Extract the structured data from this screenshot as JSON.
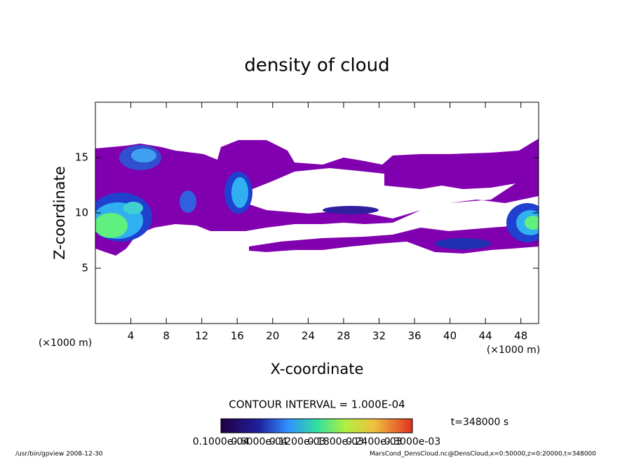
{
  "chart_data": {
    "type": "contour",
    "title": "density of cloud",
    "x_label": "X-coordinate",
    "y_label": "Z-coordinate",
    "x_unit": "(×1000 m)",
    "y_unit": "(×1000 m)",
    "xlim": [
      0,
      50
    ],
    "xticks": [
      4,
      8,
      12,
      16,
      20,
      24,
      28,
      32,
      36,
      40,
      44,
      48
    ],
    "ylim": [
      0,
      20
    ],
    "yticks": [
      5,
      10,
      15
    ],
    "contour_interval": "CONTOUR INTERVAL = 1.000E-04",
    "time_label": "t=348000 s",
    "colorbar_labels": [
      "0.1000e-04",
      "0.6000e-04",
      "0.1200e-03",
      "0.1800e-03",
      "0.2400e-03",
      "0.3000e-03"
    ],
    "footer_left": "/usr/bin/gpview   2008-12-30",
    "footer_right": "MarsCond_DensCloud.nc@DensCloud,x=0:50000,z=0:20000,t=348000"
  }
}
